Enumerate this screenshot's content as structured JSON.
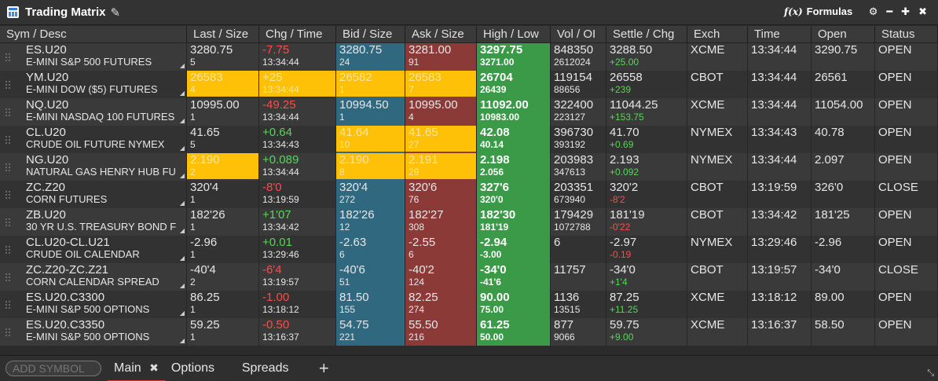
{
  "window": {
    "title": "Trading Matrix",
    "formulas_label": "Formulas",
    "icons": [
      "app-grid-icon",
      "pencil-icon",
      "fx-icon",
      "gear-icon",
      "minimize-icon",
      "maximize-icon",
      "close-icon"
    ]
  },
  "columns": [
    {
      "key": "sym",
      "label": "Sym / Desc",
      "w": 238
    },
    {
      "key": "last",
      "label": "Last / Size",
      "w": 92
    },
    {
      "key": "chg",
      "label": "Chg / Time",
      "w": 98
    },
    {
      "key": "bid",
      "label": "Bid / Size",
      "w": 88
    },
    {
      "key": "ask",
      "label": "Ask / Size",
      "w": 91
    },
    {
      "key": "hl",
      "label": "High / Low",
      "w": 94
    },
    {
      "key": "vol",
      "label": "Vol / OI",
      "w": 71
    },
    {
      "key": "settle",
      "label": "Settle / Chg",
      "w": 103
    },
    {
      "key": "exch",
      "label": "Exch",
      "w": 77
    },
    {
      "key": "time",
      "label": "Time",
      "w": 81
    },
    {
      "key": "open",
      "label": "Open",
      "w": 81
    },
    {
      "key": "status",
      "label": "Status",
      "w": 80
    }
  ],
  "rows": [
    {
      "sym": "ES.U20",
      "desc": "E-MINI S&P 500 FUTURES",
      "last": "3280.75",
      "last_size": "5",
      "chg": "-7.75",
      "chg_dir": "neg",
      "time1": "13:34:44",
      "bid": "3280.75",
      "bid_size": "24",
      "ask": "3281.00",
      "ask_size": "91",
      "high": "3297.75",
      "low": "3271.00",
      "vol": "848350",
      "oi": "2612024",
      "settle": "3288.50",
      "settle_chg": "+25.00",
      "settle_dir": "pos",
      "exch": "XCME",
      "time": "13:34:44",
      "open": "3290.75",
      "status": "OPEN",
      "hl_last": false,
      "hl_chg": false,
      "hl_bid": false,
      "hl_ask": false
    },
    {
      "sym": "YM.U20",
      "desc": "E-MINI DOW ($5) FUTURES",
      "last": "26583",
      "last_size": "4",
      "chg": "+25",
      "chg_dir": "pos",
      "time1": "13:34:44",
      "bid": "26582",
      "bid_size": "1",
      "ask": "26583",
      "ask_size": "7",
      "high": "26704",
      "low": "26439",
      "vol": "119154",
      "oi": "88656",
      "settle": "26558",
      "settle_chg": "+239",
      "settle_dir": "pos",
      "exch": "CBOT",
      "time": "13:34:44",
      "open": "26561",
      "status": "OPEN",
      "hl_last": true,
      "hl_chg": true,
      "hl_bid": true,
      "hl_ask": true
    },
    {
      "sym": "NQ.U20",
      "desc": "E-MINI NASDAQ 100 FUTURES",
      "last": "10995.00",
      "last_size": "1",
      "chg": "-49.25",
      "chg_dir": "neg",
      "time1": "13:34:44",
      "bid": "10994.50",
      "bid_size": "1",
      "ask": "10995.00",
      "ask_size": "4",
      "high": "11092.00",
      "low": "10983.00",
      "vol": "322400",
      "oi": "223127",
      "settle": "11044.25",
      "settle_chg": "+153.75",
      "settle_dir": "pos",
      "exch": "XCME",
      "time": "13:34:44",
      "open": "11054.00",
      "status": "OPEN",
      "hl_last": false,
      "hl_chg": false,
      "hl_bid": false,
      "hl_ask": false
    },
    {
      "sym": "CL.U20",
      "desc": "CRUDE OIL FUTURE NYMEX",
      "last": "41.65",
      "last_size": "5",
      "chg": "+0.64",
      "chg_dir": "pos",
      "time1": "13:34:43",
      "bid": "41.64",
      "bid_size": "10",
      "ask": "41.65",
      "ask_size": "27",
      "high": "42.08",
      "low": "40.14",
      "vol": "396730",
      "oi": "393192",
      "settle": "41.70",
      "settle_chg": "+0.69",
      "settle_dir": "pos",
      "exch": "NYMEX",
      "time": "13:34:43",
      "open": "40.78",
      "status": "OPEN",
      "hl_last": false,
      "hl_chg": false,
      "hl_bid": true,
      "hl_ask": true
    },
    {
      "sym": "NG.U20",
      "desc": "NATURAL GAS HENRY HUB FU",
      "last": "2.190",
      "last_size": "2",
      "chg": "+0.089",
      "chg_dir": "pos",
      "time1": "13:34:44",
      "bid": "2.190",
      "bid_size": "8",
      "ask": "2.191",
      "ask_size": "29",
      "high": "2.198",
      "low": "2.056",
      "vol": "203983",
      "oi": "347613",
      "settle": "2.193",
      "settle_chg": "+0.092",
      "settle_dir": "pos",
      "exch": "NYMEX",
      "time": "13:34:44",
      "open": "2.097",
      "status": "OPEN",
      "hl_last": true,
      "hl_chg": false,
      "hl_bid": true,
      "hl_ask": true
    },
    {
      "sym": "ZC.Z20",
      "desc": "CORN FUTURES",
      "last": "320'4",
      "last_size": "1",
      "chg": "-8'0",
      "chg_dir": "neg",
      "time1": "13:19:59",
      "bid": "320'4",
      "bid_size": "272",
      "ask": "320'6",
      "ask_size": "76",
      "high": "327'6",
      "low": "320'0",
      "vol": "203351",
      "oi": "673940",
      "settle": "320'2",
      "settle_chg": "-8'2",
      "settle_dir": "neg",
      "exch": "CBOT",
      "time": "13:19:59",
      "open": "326'0",
      "status": "CLOSE",
      "hl_last": false,
      "hl_chg": false,
      "hl_bid": false,
      "hl_ask": false
    },
    {
      "sym": "ZB.U20",
      "desc": "30 YR U.S. TREASURY BOND F",
      "last": "182'26",
      "last_size": "1",
      "chg": "+1'07",
      "chg_dir": "pos",
      "time1": "13:34:42",
      "bid": "182'26",
      "bid_size": "12",
      "ask": "182'27",
      "ask_size": "308",
      "high": "182'30",
      "low": "181'19",
      "vol": "179429",
      "oi": "1072788",
      "settle": "181'19",
      "settle_chg": "-0'22",
      "settle_dir": "neg",
      "exch": "CBOT",
      "time": "13:34:42",
      "open": "181'25",
      "status": "OPEN",
      "hl_last": false,
      "hl_chg": false,
      "hl_bid": false,
      "hl_ask": false
    },
    {
      "sym": "CL.U20-CL.U21",
      "desc": "CRUDE OIL CALENDAR",
      "last": "-2.96",
      "last_size": "1",
      "chg": "+0.01",
      "chg_dir": "pos",
      "time1": "13:29:46",
      "bid": "-2.63",
      "bid_size": "6",
      "ask": "-2.55",
      "ask_size": "6",
      "high": "-2.94",
      "low": "-3.00",
      "vol": "6",
      "oi": "",
      "settle": "-2.97",
      "settle_chg": "-0.19",
      "settle_dir": "neg",
      "exch": "NYMEX",
      "time": "13:29:46",
      "open": "-2.96",
      "status": "OPEN",
      "hl_last": false,
      "hl_chg": false,
      "hl_bid": false,
      "hl_ask": false
    },
    {
      "sym": "ZC.Z20-ZC.Z21",
      "desc": "CORN CALENDAR SPREAD",
      "last": "-40'4",
      "last_size": "2",
      "chg": "-6'4",
      "chg_dir": "neg",
      "time1": "13:19:57",
      "bid": "-40'6",
      "bid_size": "51",
      "ask": "-40'2",
      "ask_size": "124",
      "high": "-34'0",
      "low": "-41'6",
      "vol": "11757",
      "oi": "",
      "settle": "-34'0",
      "settle_chg": "+1'4",
      "settle_dir": "pos",
      "exch": "CBOT",
      "time": "13:19:57",
      "open": "-34'0",
      "status": "CLOSE",
      "hl_last": false,
      "hl_chg": false,
      "hl_bid": false,
      "hl_ask": false
    },
    {
      "sym": "ES.U20.C3300",
      "desc": "E-MINI S&P 500 OPTIONS",
      "last": "86.25",
      "last_size": "1",
      "chg": "-1.00",
      "chg_dir": "neg",
      "time1": "13:18:12",
      "bid": "81.50",
      "bid_size": "155",
      "ask": "82.25",
      "ask_size": "274",
      "high": "90.00",
      "low": "75.00",
      "vol": "1136",
      "oi": "13515",
      "settle": "87.25",
      "settle_chg": "+11.25",
      "settle_dir": "pos",
      "exch": "XCME",
      "time": "13:18:12",
      "open": "89.00",
      "status": "OPEN",
      "hl_last": false,
      "hl_chg": false,
      "hl_bid": false,
      "hl_ask": false
    },
    {
      "sym": "ES.U20.C3350",
      "desc": "E-MINI S&P 500 OPTIONS",
      "last": "59.25",
      "last_size": "1",
      "chg": "-0.50",
      "chg_dir": "neg",
      "time1": "13:16:37",
      "bid": "54.75",
      "bid_size": "221",
      "ask": "55.50",
      "ask_size": "216",
      "high": "61.25",
      "low": "50.00",
      "vol": "877",
      "oi": "9066",
      "settle": "59.75",
      "settle_chg": "+9.00",
      "settle_dir": "pos",
      "exch": "XCME",
      "time": "13:16:37",
      "open": "58.50",
      "status": "OPEN",
      "hl_last": false,
      "hl_chg": false,
      "hl_bid": false,
      "hl_ask": false
    }
  ],
  "footer": {
    "add_symbol_placeholder": "ADD SYMBOL",
    "tabs": [
      {
        "label": "Main",
        "active": true
      },
      {
        "label": "Options",
        "active": false
      },
      {
        "label": "Spreads",
        "active": false
      }
    ],
    "add_tab_label": "+"
  },
  "colors": {
    "bid": "#30697f",
    "ask": "#8b3a38",
    "high_low": "#3b9a47",
    "tick_highlight": "#ffc107",
    "positive": "#5bd45b",
    "negative": "#ff4b4b",
    "active_tab": "#d9342b"
  }
}
